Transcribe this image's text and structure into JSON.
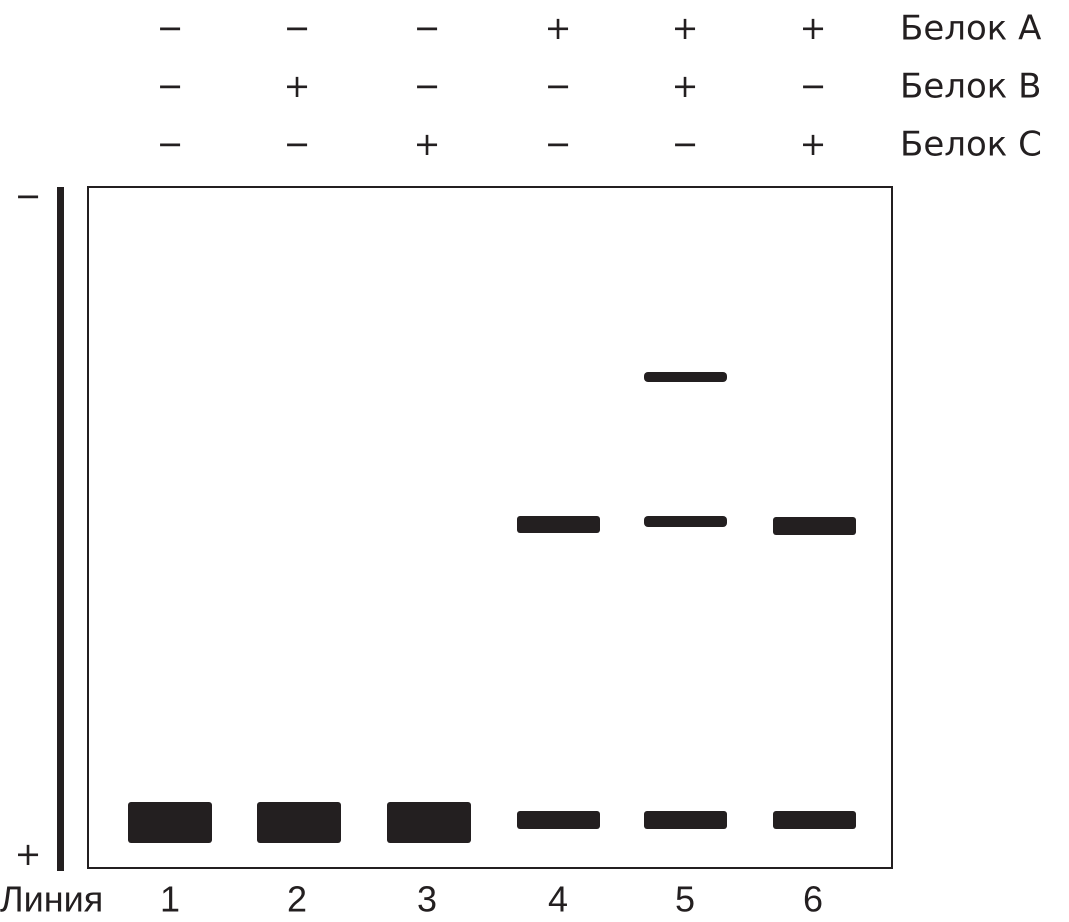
{
  "reagents": [
    {
      "name": "Белок A",
      "signs": [
        "−",
        "−",
        "−",
        "+",
        "+",
        "+"
      ]
    },
    {
      "name": "Белок B",
      "signs": [
        "−",
        "+",
        "−",
        "−",
        "+",
        "−"
      ]
    },
    {
      "name": "Белок C",
      "signs": [
        "−",
        "−",
        "+",
        "−",
        "−",
        "+"
      ]
    }
  ],
  "electrodes": {
    "top": "−",
    "bottom": "+"
  },
  "lanes": {
    "label": "Линия",
    "numbers": [
      "1",
      "2",
      "3",
      "4",
      "5",
      "6"
    ]
  }
}
